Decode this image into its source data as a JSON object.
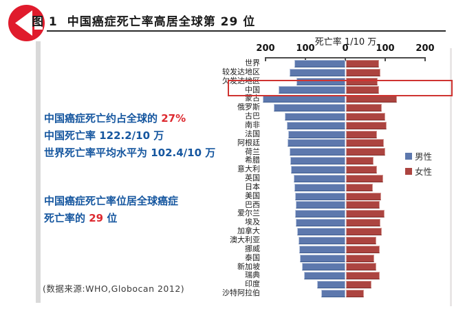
{
  "header": {
    "figure_label": "图 1",
    "title": "中国癌症死亡率高居全球第 29 位"
  },
  "annotations": {
    "block1": [
      [
        {
          "t": "中国癌症死亡约占全球的 ",
          "c": "blue"
        },
        {
          "t": "27%",
          "c": "red"
        }
      ],
      [
        {
          "t": "中国死亡率 122.2/10 万",
          "c": "blue"
        }
      ],
      [
        {
          "t": "世界死亡率平均水平为 102.4/10 万",
          "c": "blue"
        }
      ]
    ],
    "block2": [
      [
        {
          "t": "中国癌症死亡率位居全球癌症",
          "c": "blue"
        }
      ],
      [
        {
          "t": "死亡率的 ",
          "c": "blue"
        },
        {
          "t": "29",
          "c": "red"
        },
        {
          "t": " 位",
          "c": "blue"
        }
      ]
    ]
  },
  "source": "(数据来源:WHO,Globocan 2012)",
  "chart_data": {
    "type": "bar",
    "orientation": "horizontal-diverging",
    "axis_title": "死亡率 1/10 万",
    "tick_labels": [
      "200",
      "100",
      "0",
      "100",
      "200"
    ],
    "tick_values": [
      -200,
      -100,
      0,
      100,
      200
    ],
    "xlim": [
      -200,
      200
    ],
    "unit": "per 100,000 (1/10万)",
    "categories": [
      "世界",
      "较发达地区",
      "欠发达地区",
      "中国",
      "蒙古",
      "俄罗斯",
      "古巴",
      "南非",
      "法国",
      "阿根廷",
      "荷兰",
      "希腊",
      "意大利",
      "英国",
      "日本",
      "美国",
      "巴西",
      "爱尔兰",
      "埃及",
      "加拿大",
      "澳大利亚",
      "挪威",
      "泰国",
      "新加坡",
      "瑞典",
      "印度",
      "沙特阿拉伯"
    ],
    "series": [
      {
        "name": "男性",
        "color": "#5d78ad",
        "values": [
          127,
          140,
          122,
          168,
          207,
          180,
          151,
          147,
          143,
          145,
          140,
          138,
          137,
          129,
          128,
          126,
          125,
          126,
          124,
          120,
          117,
          116,
          113,
          109,
          104,
          71,
          60
        ]
      },
      {
        "name": "女性",
        "color": "#ac4440",
        "values": [
          82,
          86,
          79,
          82,
          127,
          90,
          98,
          101,
          78,
          94,
          99,
          69,
          78,
          93,
          67,
          88,
          84,
          96,
          86,
          90,
          76,
          85,
          70,
          76,
          85,
          63,
          44
        ]
      }
    ],
    "highlighted_category": "中国",
    "legend_position": "right",
    "grid": false
  },
  "colors": {
    "bar_male": "#5d78ad",
    "bar_female": "#ac4440",
    "highlight_box": "#cf3330",
    "annotation_blue": "#15569f",
    "annotation_red": "#dd2a30",
    "icon_red": "#e01b2c"
  }
}
